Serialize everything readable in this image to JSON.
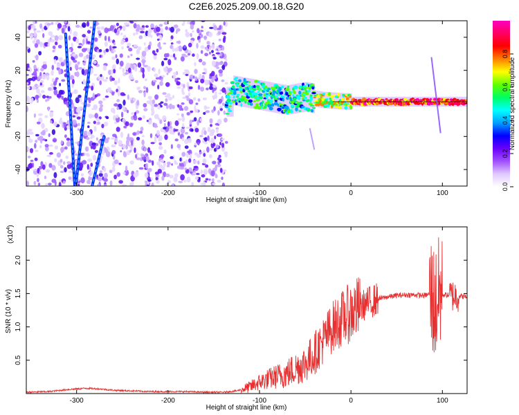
{
  "title": "C2E6.2025.209.00.18.G20",
  "chart_data": [
    {
      "type": "heatmap",
      "title": "C2E6.2025.209.00.18.G20",
      "xlabel": "Height of straight line (km)",
      "ylabel": "Frequency (Hz)",
      "xlim": [
        -355,
        127
      ],
      "ylim": [
        -50,
        50
      ],
      "xticks": [
        -300,
        -200,
        -100,
        0,
        100
      ],
      "yticks": [
        -40,
        -20,
        0,
        20,
        40
      ],
      "colorbar": {
        "label": "Normalized spectral amplitude",
        "range": [
          0,
          1
        ],
        "ticks": [
          "0.0",
          "0.2",
          "0.4",
          "0.6",
          "0.8"
        ],
        "colors": [
          "#ffffff",
          "#e0c8ff",
          "#a050ff",
          "#6a00ff",
          "#0000ff",
          "#00a0ff",
          "#00ffff",
          "#00ff60",
          "#60ff00",
          "#ffff00",
          "#ff8000",
          "#ff0000",
          "#ff0060",
          "#ff00c0"
        ]
      },
      "features": {
        "noise_region_x": [
          -355,
          -136
        ],
        "line_track_region_x": [
          -136,
          127
        ],
        "track_center_freq": [
          {
            "x": -130,
            "y": 8
          },
          {
            "x": -110,
            "y": 6
          },
          {
            "x": -90,
            "y": 4
          },
          {
            "x": -70,
            "y": 2
          },
          {
            "x": -50,
            "y": 4
          },
          {
            "x": -30,
            "y": 2
          },
          {
            "x": 0,
            "y": 1
          },
          {
            "x": 50,
            "y": 1
          },
          {
            "x": 90,
            "y": 1
          },
          {
            "x": 127,
            "y": 1
          }
        ],
        "streaks": [
          {
            "x1": -312,
            "y1": 42,
            "x2": -302,
            "y2": -50
          },
          {
            "x1": -280,
            "y1": 50,
            "x2": -301,
            "y2": -50
          },
          {
            "x1": -270,
            "y1": -20,
            "x2": -283,
            "y2": -50
          }
        ]
      }
    },
    {
      "type": "line",
      "xlabel": "Height of straight line (km)",
      "ylabel": "SNR (10 * v/v)",
      "y_multiplier": "(x10",
      "y_multiplier_exp": "4",
      "y_multiplier_close": ")",
      "xlim": [
        -355,
        127
      ],
      "ylim": [
        0,
        2.5
      ],
      "xticks": [
        -300,
        -200,
        -100,
        0,
        100
      ],
      "yticks": [
        "0.5",
        "1.0",
        "1.5",
        "2.0"
      ],
      "ytick_values": [
        0.5,
        1.0,
        1.5,
        2.0
      ],
      "series": [
        {
          "color": "#e83030",
          "x": [
            -355,
            -330,
            -310,
            -290,
            -275,
            -260,
            -240,
            -220,
            -200,
            -180,
            -160,
            -140,
            -125,
            -110,
            -100,
            -90,
            -80,
            -70,
            -60,
            -50,
            -40,
            -30,
            -20,
            -10,
            0,
            10,
            20,
            30,
            40,
            50,
            60,
            70,
            80,
            88,
            92,
            95,
            98,
            101,
            105,
            110,
            115,
            120,
            127
          ],
          "values": [
            0.02,
            0.03,
            0.06,
            0.08,
            0.07,
            0.05,
            0.04,
            0.03,
            0.03,
            0.03,
            0.02,
            0.02,
            0.04,
            0.1,
            0.17,
            0.22,
            0.26,
            0.3,
            0.38,
            0.45,
            0.6,
            0.8,
            1.0,
            1.12,
            1.22,
            1.3,
            1.37,
            1.42,
            1.45,
            1.47,
            1.48,
            1.48,
            1.47,
            1.5,
            1.3,
            1.45,
            1.5,
            1.48,
            1.48,
            1.47,
            1.47,
            1.46,
            1.45
          ]
        }
      ]
    }
  ]
}
